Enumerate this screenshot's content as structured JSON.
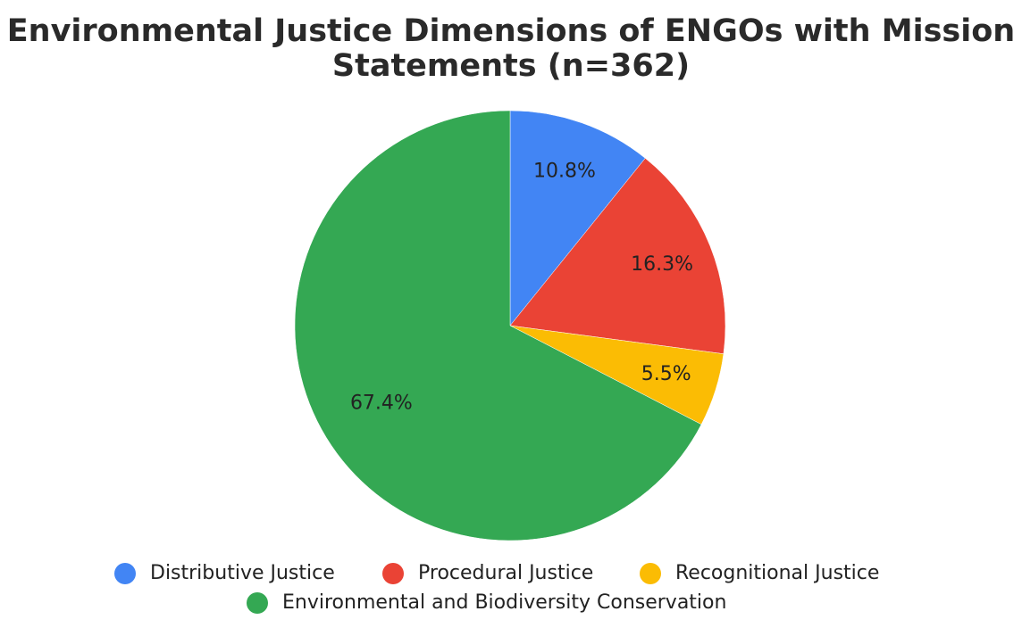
{
  "chart_data": {
    "type": "pie",
    "title": "Environmental Justice Dimensions of ENGOs with Mission Statements (n=362)",
    "categories": [
      "Distributive Justice",
      "Procedural Justice",
      "Recognitional Justice",
      "Environmental and Biodiversity Conservation"
    ],
    "values": [
      10.8,
      16.3,
      5.5,
      67.4
    ],
    "value_labels": [
      "10.8%",
      "16.3%",
      "5.5%",
      "67.4%"
    ],
    "colors": [
      "#4285f4",
      "#ea4335",
      "#fbbc04",
      "#34a853"
    ],
    "legend": "bottom"
  }
}
